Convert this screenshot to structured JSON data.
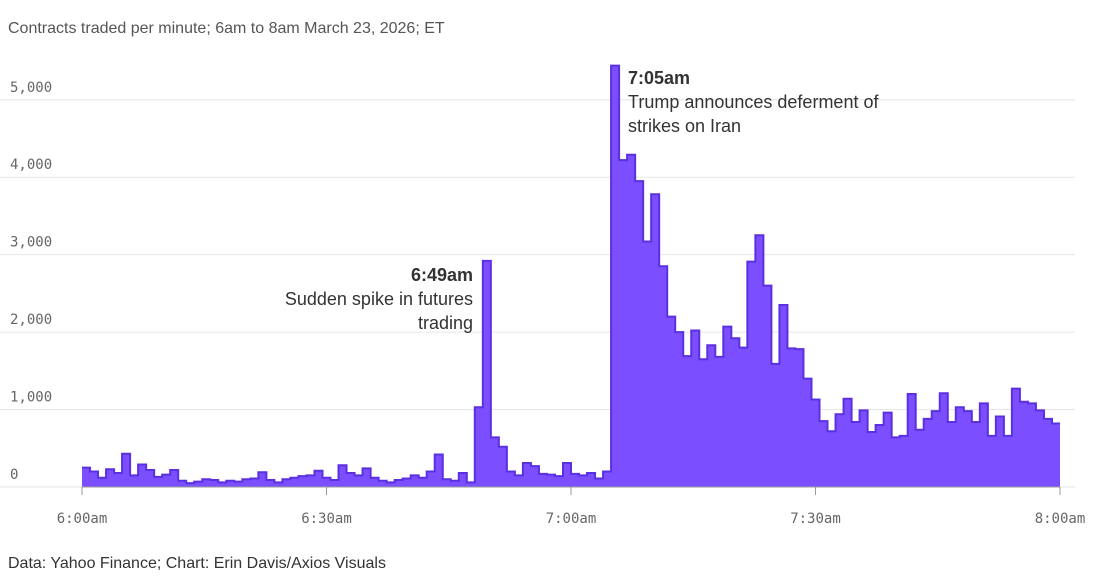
{
  "subtitle": "Contracts traded per minute; 6am to 8am March 23, 2026; ET",
  "source": "Data: Yahoo Finance; Chart: Erin Davis/Axios Visuals",
  "colors": {
    "area": "#7b4fff",
    "line": "#5a30e0",
    "grid": "#e6e6e6"
  },
  "annotations": [
    {
      "time": "6:49am",
      "lines": [
        "Sudden spike in futures",
        "trading"
      ]
    },
    {
      "time": "7:05am",
      "lines": [
        "Trump announces deferment of",
        "strikes on Iran"
      ]
    }
  ],
  "chart_data": {
    "type": "area",
    "ylim": [
      0,
      5500
    ],
    "yticks": [
      0,
      1000,
      2000,
      3000,
      4000,
      5000
    ],
    "ytick_labels": [
      "0",
      "1,000",
      "2,000",
      "3,000",
      "4,000",
      "5,000"
    ],
    "xticks": [
      0,
      30,
      60,
      90,
      120
    ],
    "xtick_labels": [
      "6:00am",
      "6:30am",
      "7:00am",
      "7:30am",
      "8:00am"
    ],
    "grid": true,
    "step": true,
    "x_start": "6:00am",
    "x_end": "8:00am",
    "values": [
      250,
      200,
      120,
      230,
      180,
      430,
      150,
      290,
      220,
      130,
      160,
      220,
      80,
      50,
      70,
      100,
      90,
      60,
      80,
      70,
      100,
      110,
      190,
      90,
      60,
      100,
      120,
      140,
      150,
      210,
      120,
      90,
      280,
      180,
      150,
      240,
      120,
      80,
      60,
      90,
      110,
      150,
      120,
      200,
      420,
      100,
      80,
      180,
      60,
      1030,
      2920,
      640,
      520,
      200,
      150,
      310,
      270,
      170,
      160,
      140,
      310,
      170,
      150,
      180,
      110,
      200,
      5440,
      4220,
      4290,
      3950,
      3170,
      3780,
      2850,
      2200,
      2000,
      1690,
      2020,
      1650,
      1830,
      1680,
      2070,
      1920,
      1800,
      2910,
      3250,
      2600,
      1590,
      2350,
      1790,
      1780,
      1400,
      1130,
      850,
      720,
      940,
      1140,
      840,
      990,
      710,
      800,
      960,
      640,
      660,
      1200,
      740,
      880,
      980,
      1210,
      840,
      1030,
      980,
      840,
      1080,
      660,
      910,
      660,
      1270,
      1100,
      1080,
      990,
      880,
      820
    ]
  }
}
